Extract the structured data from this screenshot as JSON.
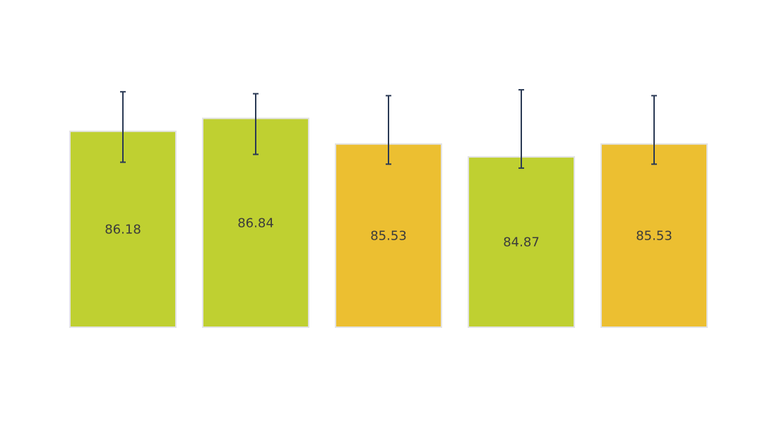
{
  "chart_data": {
    "type": "bar",
    "categories": [
      "",
      "",
      "",
      "",
      ""
    ],
    "values": [
      86.18,
      86.84,
      85.53,
      84.87,
      85.53
    ],
    "labels": [
      "86.18",
      "86.84",
      "85.53",
      "84.87",
      "85.53"
    ],
    "error_upper": [
      88.2,
      88.1,
      88.0,
      88.3,
      88.0
    ],
    "error_lower": [
      84.6,
      85.0,
      84.5,
      84.3,
      84.5
    ],
    "bar_colors": [
      "#bfd031",
      "#bfd031",
      "#ecbf31",
      "#bfd031",
      "#ecbf31"
    ],
    "error_color": "#2b3a55",
    "label_color": "#3b3b3b",
    "ylim": [
      76.17,
      90.0
    ],
    "grid": false,
    "legend": "none",
    "title": "",
    "xlabel": "",
    "ylabel": ""
  }
}
